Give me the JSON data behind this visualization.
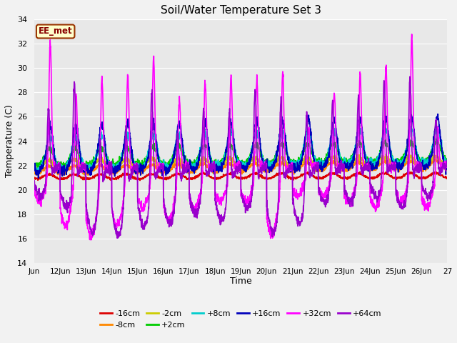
{
  "title": "Soil/Water Temperature Set 3",
  "xlabel": "Time",
  "ylabel": "Temperature (C)",
  "ylim": [
    14,
    34
  ],
  "xlim": [
    0,
    16
  ],
  "yticks": [
    14,
    16,
    18,
    20,
    22,
    24,
    26,
    28,
    30,
    32,
    34
  ],
  "xtick_labels": [
    "Jun",
    "12Jun",
    "13Jun",
    "14Jun",
    "15Jun",
    "16Jun",
    "17Jun",
    "18Jun",
    "19Jun",
    "20Jun",
    "21Jun",
    "22Jun",
    "23Jun",
    "24Jun",
    "25Jun",
    "26Jun",
    "27"
  ],
  "annotation_text": "EE_met",
  "annotation_bg": "#FFFFCC",
  "annotation_border": "#993300",
  "fig_bg": "#F2F2F2",
  "plot_bg": "#E8E8E8",
  "grid_color": "#FFFFFF",
  "series_order": [
    "-16cm",
    "-8cm",
    "-2cm",
    "+2cm",
    "+8cm",
    "+16cm",
    "+32cm",
    "+64cm"
  ],
  "series": {
    "-16cm": {
      "color": "#DD0000",
      "lw": 1.2
    },
    "-8cm": {
      "color": "#FF8800",
      "lw": 1.2
    },
    "-2cm": {
      "color": "#CCCC00",
      "lw": 1.2
    },
    "+2cm": {
      "color": "#00CC00",
      "lw": 1.2
    },
    "+8cm": {
      "color": "#00CCCC",
      "lw": 1.2
    },
    "+16cm": {
      "color": "#0000BB",
      "lw": 1.2
    },
    "+32cm": {
      "color": "#FF00FF",
      "lw": 1.2
    },
    "+64cm": {
      "color": "#9900CC",
      "lw": 1.2
    }
  },
  "legend_ncol": 6,
  "figsize": [
    6.4,
    4.8
  ],
  "dpi": 100
}
